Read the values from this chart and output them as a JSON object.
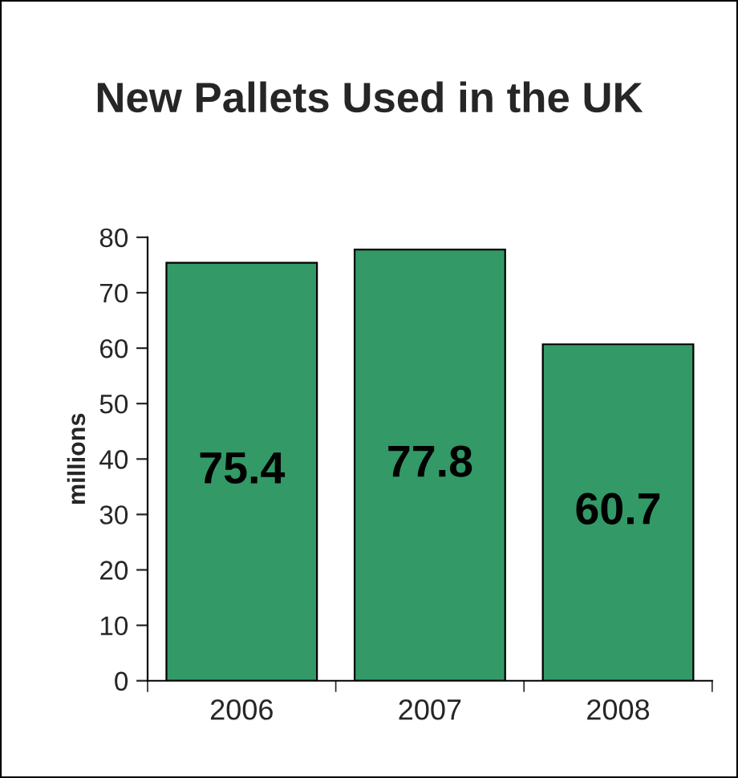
{
  "chart_data": {
    "type": "bar",
    "title": "New Pallets Used in the UK",
    "ylabel": "millions",
    "categories": [
      "2006",
      "2007",
      "2008"
    ],
    "values": [
      75.4,
      77.8,
      60.7
    ],
    "color": "#339966",
    "ylim": [
      0,
      80
    ],
    "yticks": [
      0,
      10,
      20,
      30,
      40,
      50,
      60,
      70,
      80
    ],
    "grid": false,
    "data_labels": true
  }
}
